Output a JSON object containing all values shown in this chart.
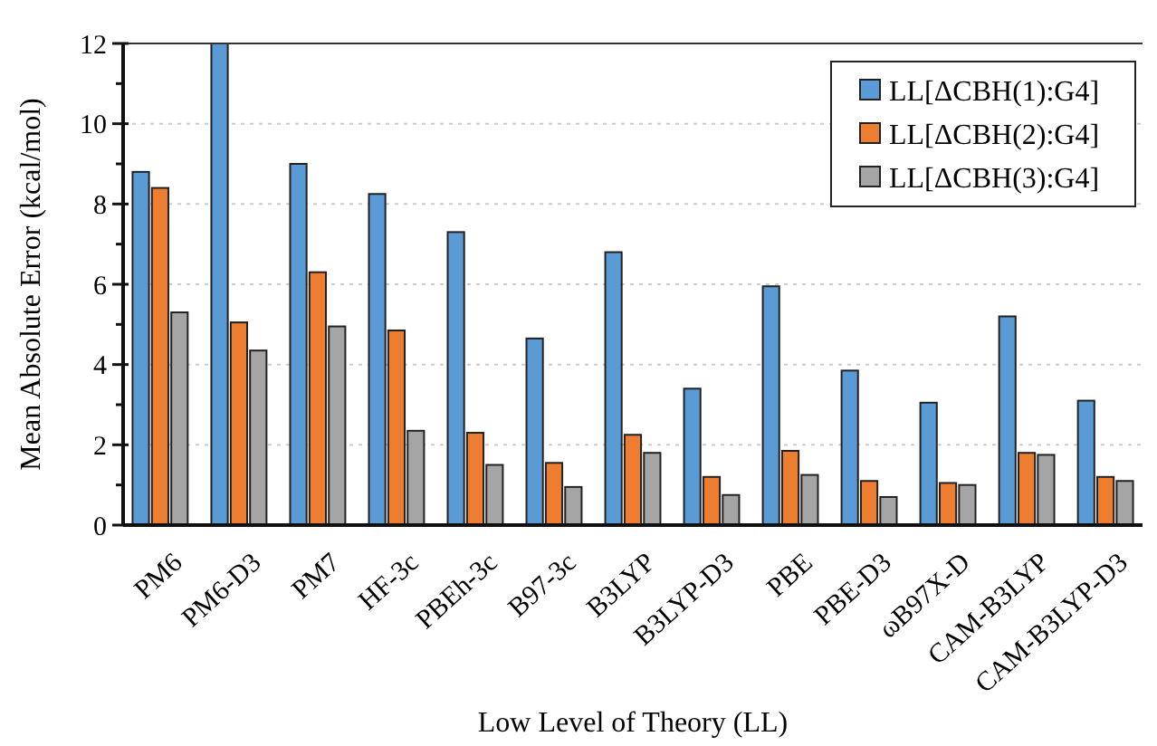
{
  "chart_data": {
    "type": "bar",
    "xlabel": "Low Level of Theory (LL)",
    "ylabel": "Mean Absolute Error (kcal/mol)",
    "categories": [
      "PM6",
      "PM6-D3",
      "PM7",
      "HF-3c",
      "PBEh-3c",
      "B97-3c",
      "B3LYP",
      "B3LYP-D3",
      "PBE",
      "PBE-D3",
      "ωB97X-D",
      "CAM-B3LYP",
      "CAM-B3LYP-D3"
    ],
    "series": [
      {
        "name": "LL[ΔCBH(1):G4]",
        "color": "#5b9bd5",
        "values": [
          8.8,
          12,
          9.0,
          8.25,
          7.3,
          4.65,
          6.8,
          3.4,
          5.95,
          3.85,
          3.05,
          5.2,
          3.1
        ]
      },
      {
        "name": "LL[ΔCBH(2):G4]",
        "color": "#ed7d31",
        "values": [
          8.4,
          5.05,
          6.3,
          4.85,
          2.3,
          1.55,
          2.25,
          1.2,
          1.85,
          1.1,
          1.05,
          1.8,
          1.2
        ]
      },
      {
        "name": "LL[ΔCBH(3):G4]",
        "color": "#a5a5a5",
        "values": [
          5.3,
          4.35,
          4.95,
          2.35,
          1.5,
          0.95,
          1.8,
          0.75,
          1.25,
          0.7,
          1.0,
          1.75,
          1.1
        ]
      }
    ],
    "ylim": [
      0,
      12
    ],
    "yticks": [
      0,
      {
        "value": 1,
        "label": null
      },
      2,
      {
        "value": 3,
        "label": null
      },
      4,
      {
        "value": 5,
        "label": null
      },
      6,
      {
        "value": 7,
        "label": null
      },
      8,
      {
        "value": 9,
        "label": null
      },
      10,
      {
        "value": 11,
        "label": null
      },
      12
    ],
    "grid": "y",
    "legend": "top right"
  }
}
